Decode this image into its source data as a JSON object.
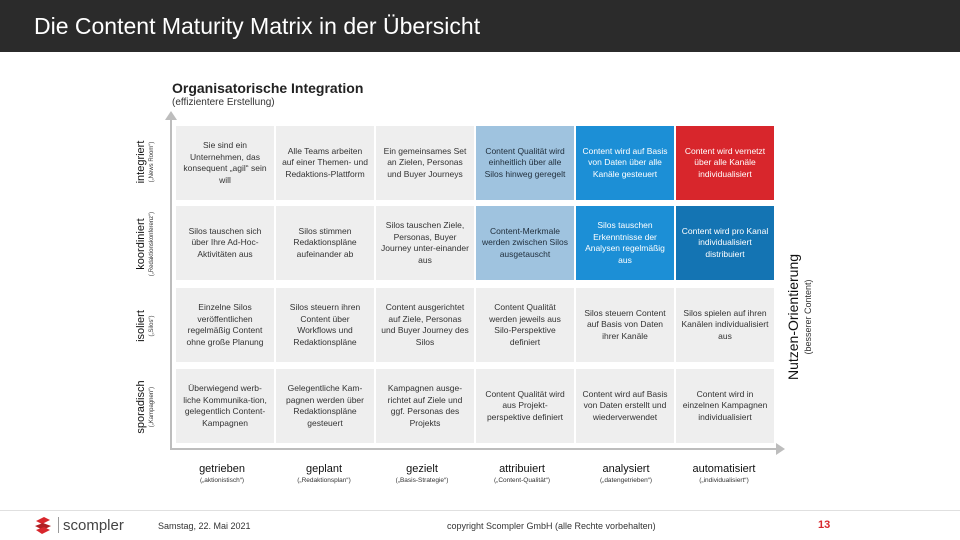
{
  "slide": {
    "title": "Die Content Maturity Matrix in der Übersicht",
    "section_title": "Organisatorische Integration",
    "section_subtitle": "(effizientere Erstellung)"
  },
  "rows": [
    {
      "label": "integriert",
      "sub": "(„News Room“)"
    },
    {
      "label": "koordiniert",
      "sub": "(„Redaktionskonferenz“)"
    },
    {
      "label": "isoliert",
      "sub": "(„Silos“)"
    },
    {
      "label": "sporadisch",
      "sub": "(„Kampagnen“)"
    }
  ],
  "columns": [
    {
      "label": "getrieben",
      "sub": "(„aktionistisch“)"
    },
    {
      "label": "geplant",
      "sub": "(„Redaktionsplan“)"
    },
    {
      "label": "gezielt",
      "sub": "(„Basis-Strategie“)"
    },
    {
      "label": "attribuiert",
      "sub": "(„Content-Qualität“)"
    },
    {
      "label": "analysiert",
      "sub": "(„datengetrieben“)"
    },
    {
      "label": "automatisiert",
      "sub": "(„individualisiert“)"
    }
  ],
  "cells": [
    [
      "Sie sind ein Unternehmen, das konsequent „agil“ sein will",
      "Alle Teams arbeiten auf einer Themen- und Redaktions-Plattform",
      "Ein gemeinsames Set an Zielen, Personas und Buyer Journeys",
      "Content Qualität wird einheitlich über alle Silos hinweg geregelt",
      "Content wird auf Basis von Daten über alle Kanäle gesteuert",
      "Content wird vernetzt über alle Kanäle individualisiert"
    ],
    [
      "Silos tauschen sich über Ihre Ad-Hoc-Aktivitäten aus",
      "Silos stimmen Redaktionspläne aufeinander ab",
      "Silos tauschen Ziele, Personas, Buyer Journey unter-einander aus",
      "Content-Merkmale werden zwischen Silos ausgetauscht",
      "Silos tauschen Erkenntnisse der Analysen regelmäßig aus",
      "Content wird pro Kanal individualisiert distribuiert"
    ],
    [
      "Einzelne Silos veröffentlichen regelmäßig Content ohne große Planung",
      "Silos steuern ihren Content über Workflows und Redaktionspläne",
      "Content ausgerichtet auf Ziele, Personas und Buyer Journey des Silos",
      "Content Qualität werden jeweils aus Silo-Perspektive definiert",
      "Silos steuern Content auf Basis von Daten ihrer Kanäle",
      "Silos spielen auf ihren Kanälen individualisiert aus"
    ],
    [
      "Überwiegend werb-liche Kommunika-tion, gelegentlich Content-Kampagnen",
      "Gelegentliche Kam-pagnen werden über Redaktionspläne gesteuert",
      "Kampagnen ausge-richtet auf Ziele und ggf. Personas des Projekts",
      "Content Qualität wird aus Projekt-perspektive definiert",
      "Content wird auf Basis von Daten erstellt und wiederverwendet",
      "Content wird in einzelnen Kampagnen individualisiert"
    ]
  ],
  "right_axis": {
    "label": "Nutzen-Orientierung",
    "sub": "(besserer Content)"
  },
  "footer": {
    "logo_text": "scompler",
    "date": "Samstag, 22. Mai 2021",
    "copyright": "copyright Scompler GmbH (alle Rechte vorbehalten)",
    "page_number": "13"
  },
  "colors": {
    "title_bar": "#2b2b2b",
    "cell_light": "#eeeeee",
    "cell_mid": "#9fc3df",
    "cell_dark": "#1c8fd6",
    "cell_deep": "#1474b3",
    "cell_red": "#d8262c",
    "accent": "#d8262c"
  }
}
